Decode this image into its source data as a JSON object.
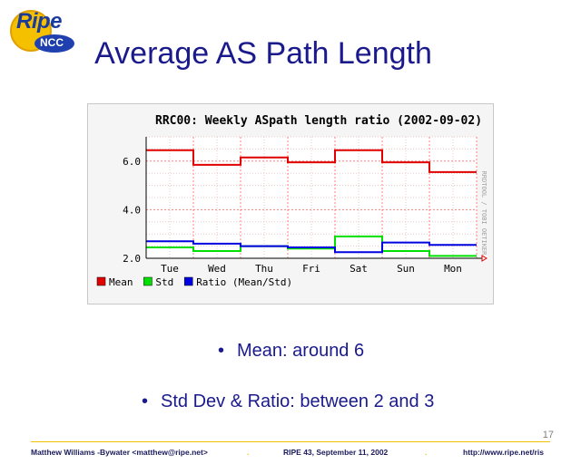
{
  "logo": {
    "ripe": "Ripe",
    "ncc": "NCC"
  },
  "slide_title": "Average AS Path Length",
  "bullets": [
    "Mean: around 6",
    "Std Dev & Ratio: between 2 and 3"
  ],
  "page_number": "17",
  "footer": {
    "author": "Matthew Williams -Bywater <matthew@ripe.net>",
    "separator": ".",
    "event": "RIPE 43, September 11, 2002",
    "url": "http://www.ripe.net/ris"
  },
  "colors": {
    "mean": "#e00000",
    "std": "#00e000",
    "ratio": "#0000e0",
    "title": "#1a1a8c"
  },
  "chart_data": {
    "type": "line",
    "title": "RRC00:  Weekly ASpath length ratio (2002-09-02)",
    "credit": "RRDTOOL / TOBI OETIKER",
    "categories": [
      "Tue",
      "Wed",
      "Thu",
      "Fri",
      "Sat",
      "Sun",
      "Mon"
    ],
    "ylim": [
      2.0,
      7.0
    ],
    "yticks": [
      "6.0",
      "4.0",
      "2.0"
    ],
    "grid": true,
    "legend_position": "bottom",
    "series": [
      {
        "name": "Mean",
        "values": [
          6.45,
          5.85,
          6.15,
          5.95,
          6.45,
          5.95,
          5.55
        ]
      },
      {
        "name": "Std",
        "values": [
          2.45,
          2.3,
          2.5,
          2.4,
          2.9,
          2.3,
          2.1
        ]
      },
      {
        "name": "Ratio (Mean/Std)",
        "values": [
          2.7,
          2.6,
          2.5,
          2.45,
          2.25,
          2.65,
          2.55
        ]
      }
    ]
  }
}
